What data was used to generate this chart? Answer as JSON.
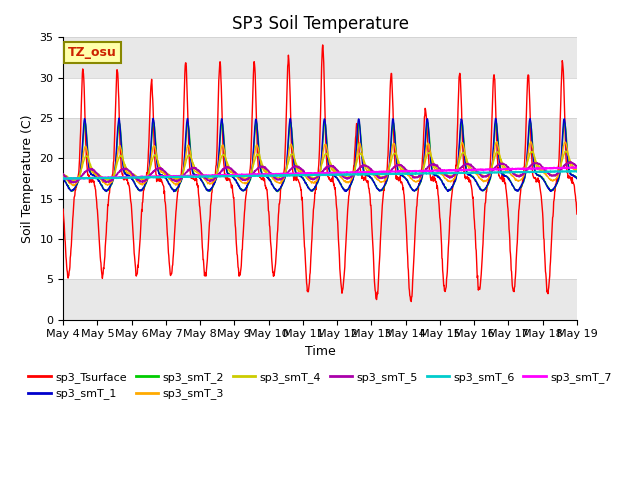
{
  "title": "SP3 Soil Temperature",
  "ylabel": "Soil Temperature (C)",
  "xlabel": "Time",
  "ylim": [
    0,
    35
  ],
  "yticks": [
    0,
    5,
    10,
    15,
    20,
    25,
    30,
    35
  ],
  "x_tick_labels": [
    "May 4",
    "May 5",
    "May 6",
    "May 7",
    "May 8",
    "May 9",
    "May 10",
    "May 11",
    "May 12",
    "May 13",
    "May 14",
    "May 15",
    "May 16",
    "May 17",
    "May 18",
    "May 19"
  ],
  "tz_label": "TZ_osu",
  "series_colors": {
    "sp3_Tsurface": "#ff0000",
    "sp3_smT_1": "#0000cc",
    "sp3_smT_2": "#00cc00",
    "sp3_smT_3": "#ffaa00",
    "sp3_smT_4": "#cccc00",
    "sp3_smT_5": "#aa00aa",
    "sp3_smT_6": "#00cccc",
    "sp3_smT_7": "#ff00ff"
  },
  "background_color": "#ffffff",
  "title_fontsize": 12,
  "axis_label_fontsize": 9,
  "tick_fontsize": 8,
  "legend_fontsize": 8
}
